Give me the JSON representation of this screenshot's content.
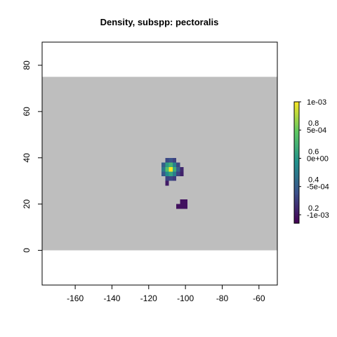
{
  "chart_data": {
    "type": "heatmap",
    "title": "Density, subspp: pectoralis",
    "xlabel": "",
    "ylabel": "",
    "xlim": [
      -178,
      -50
    ],
    "ylim": [
      -15,
      90
    ],
    "x_ticks": [
      "-160",
      "-140",
      "-120",
      "-100",
      "-80",
      "-60"
    ],
    "x_tick_values": [
      -160,
      -140,
      -120,
      -100,
      -80,
      -60
    ],
    "y_ticks": [
      "0",
      "20",
      "40",
      "60",
      "80"
    ],
    "y_tick_values": [
      0,
      20,
      40,
      60,
      80
    ],
    "grid": false,
    "background_region": {
      "xmin": -178,
      "xmax": -50,
      "ymin": 0,
      "ymax": 75,
      "color": "#bebebe"
    },
    "cell_size": 2,
    "cells": [
      {
        "x": -110,
        "y": 39,
        "v": 0.22
      },
      {
        "x": -108,
        "y": 39,
        "v": 0.25
      },
      {
        "x": -106,
        "y": 39,
        "v": 0.2
      },
      {
        "x": -112,
        "y": 37,
        "v": 0.3
      },
      {
        "x": -110,
        "y": 37,
        "v": 0.55
      },
      {
        "x": -108,
        "y": 37,
        "v": 0.65
      },
      {
        "x": -106,
        "y": 37,
        "v": 0.45
      },
      {
        "x": -104,
        "y": 37,
        "v": 0.22
      },
      {
        "x": -112,
        "y": 35,
        "v": 0.4
      },
      {
        "x": -110,
        "y": 35,
        "v": 0.7
      },
      {
        "x": -108,
        "y": 35,
        "v": 1.0
      },
      {
        "x": -106,
        "y": 35,
        "v": 0.62
      },
      {
        "x": -104,
        "y": 35,
        "v": 0.3
      },
      {
        "x": -102,
        "y": 35,
        "v": 0.12
      },
      {
        "x": -112,
        "y": 33,
        "v": 0.28
      },
      {
        "x": -110,
        "y": 33,
        "v": 0.48
      },
      {
        "x": -108,
        "y": 33,
        "v": 0.58
      },
      {
        "x": -106,
        "y": 33,
        "v": 0.42
      },
      {
        "x": -104,
        "y": 33,
        "v": 0.2
      },
      {
        "x": -102,
        "y": 33,
        "v": 0.1
      },
      {
        "x": -110,
        "y": 31,
        "v": 0.2
      },
      {
        "x": -108,
        "y": 31,
        "v": 0.22
      },
      {
        "x": -106,
        "y": 31,
        "v": 0.18
      },
      {
        "x": -110,
        "y": 29,
        "v": 0.08
      },
      {
        "x": -102,
        "y": 21,
        "v": 0.05
      },
      {
        "x": -100,
        "y": 21,
        "v": 0.05
      },
      {
        "x": -104,
        "y": 19,
        "v": 0.05
      },
      {
        "x": -102,
        "y": 19,
        "v": 0.05
      },
      {
        "x": -100,
        "y": 19,
        "v": 0.05
      }
    ],
    "colorbar": {
      "palette": "viridis",
      "range": [
        0.14,
        1.0
      ],
      "labels_left": [
        {
          "value": 1.0,
          "text": "1e-03"
        },
        {
          "value": 0.8,
          "text": "5e-04"
        },
        {
          "value": 0.6,
          "text": "0e+00"
        },
        {
          "value": 0.4,
          "text": "-5e-04"
        },
        {
          "value": 0.2,
          "text": "-1e-03"
        }
      ],
      "labels_right": [
        {
          "value": 0.8,
          "text": "0.8"
        },
        {
          "value": 0.6,
          "text": "0.6"
        },
        {
          "value": 0.4,
          "text": "0.4"
        },
        {
          "value": 0.2,
          "text": "0.2"
        }
      ]
    }
  }
}
